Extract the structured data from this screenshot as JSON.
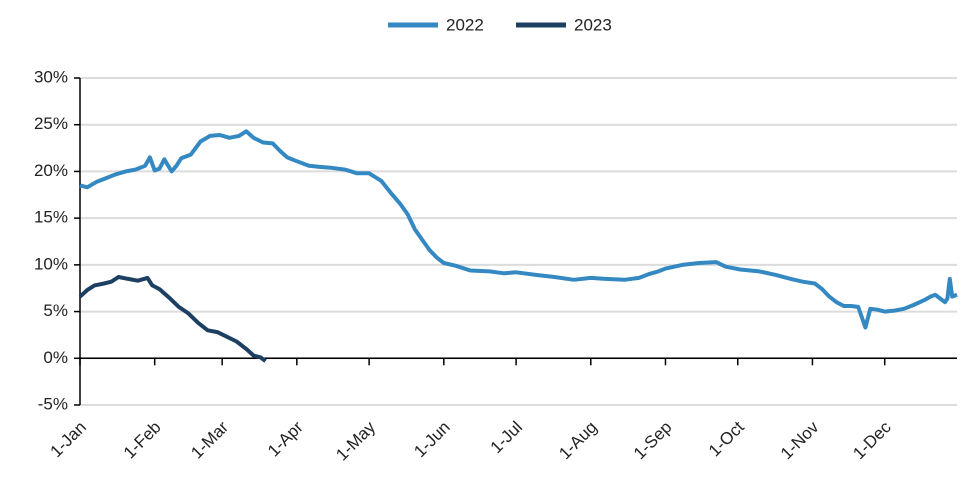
{
  "chart_data": {
    "type": "line",
    "xlim": [
      0,
      364
    ],
    "xticks": [
      {
        "value": 0,
        "label": "1-Jan"
      },
      {
        "value": 31,
        "label": "1-Feb"
      },
      {
        "value": 59,
        "label": "1-Mar"
      },
      {
        "value": 90,
        "label": "1-Apr"
      },
      {
        "value": 120,
        "label": "1-May"
      },
      {
        "value": 151,
        "label": "1-Jun"
      },
      {
        "value": 181,
        "label": "1-Jul"
      },
      {
        "value": 212,
        "label": "1-Aug"
      },
      {
        "value": 243,
        "label": "1-Sep"
      },
      {
        "value": 273,
        "label": "1-Oct"
      },
      {
        "value": 304,
        "label": "1-Nov"
      },
      {
        "value": 334,
        "label": "1-Dec"
      }
    ],
    "ylim": [
      -5,
      30
    ],
    "yticks": [
      {
        "value": -5,
        "label": "-5%"
      },
      {
        "value": 0,
        "label": "0%"
      },
      {
        "value": 5,
        "label": "5%"
      },
      {
        "value": 10,
        "label": "10%"
      },
      {
        "value": 15,
        "label": "15%"
      },
      {
        "value": 20,
        "label": "20%"
      },
      {
        "value": 25,
        "label": "25%"
      },
      {
        "value": 30,
        "label": "30%"
      }
    ],
    "grid": true,
    "legend": "top",
    "series": [
      {
        "name": "2022",
        "color": "#3589c3",
        "x": [
          0,
          3,
          7,
          11,
          15,
          19,
          23,
          27,
          29,
          31,
          33,
          35,
          38,
          40,
          42,
          46,
          50,
          54,
          58,
          62,
          66,
          69,
          72,
          76,
          80,
          83,
          86,
          90,
          95,
          99,
          104,
          110,
          115,
          120,
          125,
          129,
          133,
          136,
          139,
          142,
          145,
          148,
          151,
          156,
          162,
          170,
          176,
          181,
          190,
          197,
          205,
          212,
          218,
          226,
          232,
          236,
          240,
          243,
          250,
          257,
          264,
          268,
          274,
          282,
          289,
          295,
          300,
          305,
          308,
          311,
          314,
          317,
          320,
          323,
          326,
          328,
          331,
          334,
          338,
          342,
          346,
          351,
          353,
          355,
          357,
          359,
          360,
          361,
          362,
          364
        ],
        "values": [
          18.5,
          18.3,
          18.9,
          19.3,
          19.7,
          20.0,
          20.2,
          20.6,
          21.5,
          20.1,
          20.3,
          21.3,
          20.0,
          20.6,
          21.4,
          21.8,
          23.2,
          23.8,
          23.9,
          23.6,
          23.8,
          24.3,
          23.6,
          23.1,
          23.0,
          22.2,
          21.5,
          21.1,
          20.6,
          20.5,
          20.4,
          20.2,
          19.8,
          19.8,
          19.0,
          17.7,
          16.5,
          15.4,
          13.8,
          12.7,
          11.6,
          10.8,
          10.2,
          9.9,
          9.4,
          9.3,
          9.1,
          9.2,
          8.9,
          8.7,
          8.4,
          8.6,
          8.5,
          8.4,
          8.6,
          9.0,
          9.3,
          9.6,
          10.0,
          10.2,
          10.3,
          9.8,
          9.5,
          9.3,
          8.9,
          8.5,
          8.2,
          8.0,
          7.4,
          6.6,
          6.0,
          5.6,
          5.6,
          5.5,
          3.3,
          5.3,
          5.2,
          5.0,
          5.1,
          5.3,
          5.7,
          6.3,
          6.6,
          6.8,
          6.4,
          6.0,
          6.4,
          8.5,
          6.6,
          6.8
        ]
      },
      {
        "name": "2023",
        "color": "#1d3f62",
        "x": [
          0,
          3,
          6,
          10,
          13,
          16,
          20,
          24,
          28,
          30,
          33,
          37,
          41,
          45,
          49,
          53,
          57,
          61,
          65,
          69,
          72,
          75,
          77
        ],
        "values": [
          6.6,
          7.3,
          7.8,
          8.0,
          8.2,
          8.7,
          8.5,
          8.3,
          8.6,
          7.8,
          7.4,
          6.5,
          5.5,
          4.8,
          3.8,
          3.0,
          2.8,
          2.3,
          1.8,
          1.0,
          0.3,
          0.1,
          -0.3
        ]
      }
    ]
  }
}
